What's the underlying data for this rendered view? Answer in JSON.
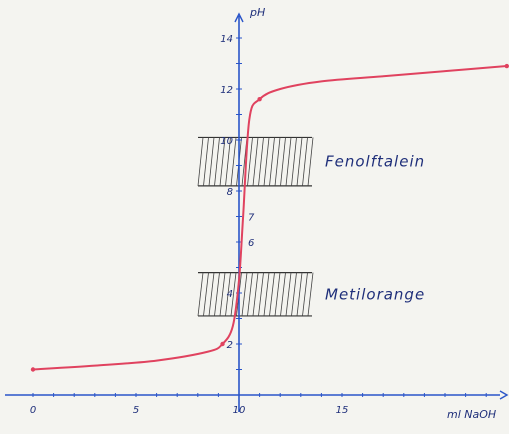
{
  "chart_data": {
    "type": "line",
    "title": "",
    "xlabel": "ml NaOH",
    "ylabel": "pH",
    "xlim": [
      0,
      23
    ],
    "ylim": [
      0,
      15
    ],
    "x_ticks": [
      "0",
      "5",
      "10",
      "15"
    ],
    "y_ticks": [
      "2",
      "4",
      "6",
      "7",
      "8",
      "10",
      "12",
      "14"
    ],
    "series": [
      {
        "x": [
          0,
          3,
          6,
          8.5,
          9.2,
          9.7,
          10,
          10.2,
          10.5,
          11,
          12,
          14,
          17,
          20,
          23
        ],
        "y": [
          1.0,
          1.15,
          1.35,
          1.7,
          2.0,
          2.7,
          4.5,
          7.0,
          10.8,
          11.6,
          12.0,
          12.3,
          12.5,
          12.7,
          12.9
        ]
      }
    ],
    "indicator_bands": [
      {
        "label": "Fenolftalein",
        "range": [
          8.2,
          10.1
        ]
      },
      {
        "label": "Metilorange",
        "range": [
          3.1,
          4.8
        ]
      }
    ],
    "grid": false,
    "colors": {
      "curve": "#e0425f",
      "axes": "#2a55c9",
      "ink": "#1f2f7a",
      "hatch": "#444444"
    }
  }
}
